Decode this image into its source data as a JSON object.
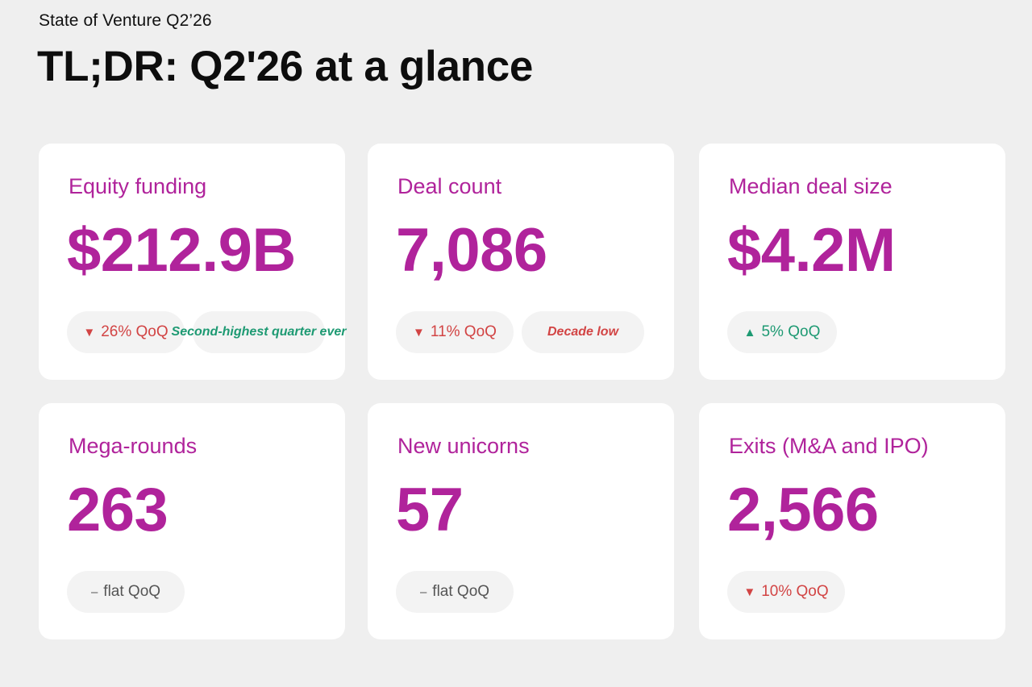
{
  "header": {
    "eyebrow": "State of Venture Q2’26",
    "title": "TL;DR: Q2'26 at a glance"
  },
  "colors": {
    "accent": "#b0239b",
    "down": "#d24444",
    "up": "#1e9a73",
    "neutral": "#555555",
    "background": "#efefef"
  },
  "cards": [
    {
      "label": "Equity funding",
      "value": "$212.9B",
      "change": {
        "direction": "down",
        "symbol": "▼",
        "text": "26% QoQ"
      },
      "note": {
        "text": "Second-highest quarter ever",
        "tone": "good"
      }
    },
    {
      "label": "Deal count",
      "value": "7,086",
      "change": {
        "direction": "down",
        "symbol": "▼",
        "text": "11% QoQ"
      },
      "note": {
        "text": "Decade low",
        "tone": "bad"
      }
    },
    {
      "label": "Median deal size",
      "value": "$4.2M",
      "change": {
        "direction": "up",
        "symbol": "▲",
        "text": "5% QoQ"
      }
    },
    {
      "label": "Mega-rounds",
      "value": "263",
      "change": {
        "direction": "flat",
        "symbol": "–",
        "text": "flat QoQ"
      }
    },
    {
      "label": "New unicorns",
      "value": "57",
      "change": {
        "direction": "flat",
        "symbol": "–",
        "text": "flat QoQ"
      }
    },
    {
      "label": "Exits (M&A and IPO)",
      "value": "2,566",
      "change": {
        "direction": "down",
        "symbol": "▼",
        "text": "10% QoQ"
      }
    }
  ]
}
